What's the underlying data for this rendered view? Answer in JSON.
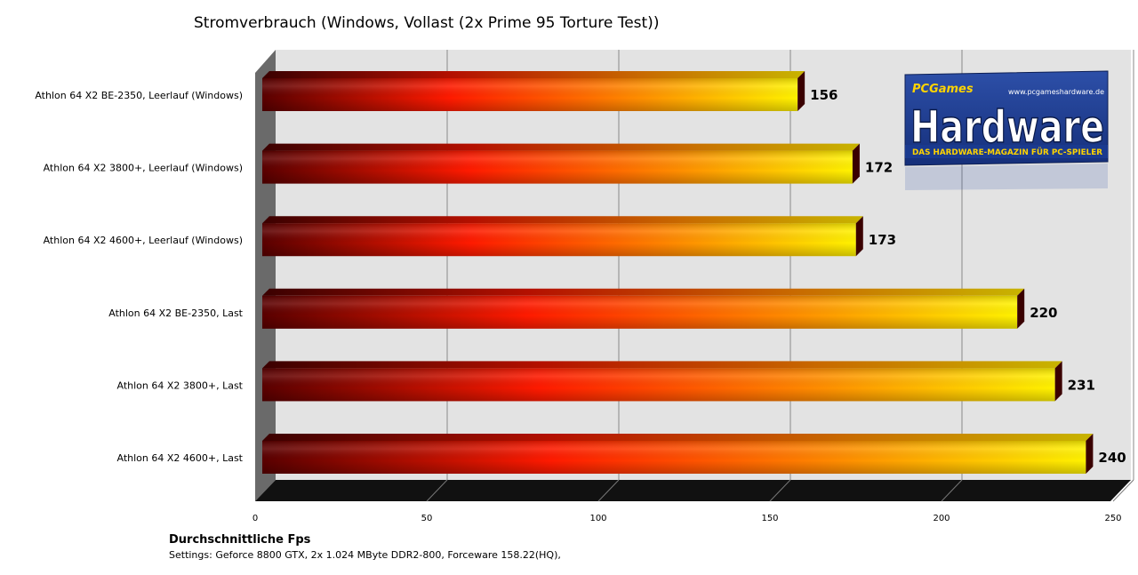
{
  "chart_data": {
    "type": "bar",
    "orientation": "horizontal",
    "title": "Stromverbrauch (Windows, Vollast (2x Prime 95 Torture Test))",
    "categories": [
      "Athlon 64 X2 BE-2350, Leerlauf (Windows)",
      "Athlon 64 X2 3800+, Leerlauf (Windows)",
      "Athlon 64 X2 4600+, Leerlauf (Windows)",
      "Athlon 64 X2 BE-2350, Last",
      "Athlon 64 X2 3800+, Last",
      "Athlon 64 X2 4600+, Last"
    ],
    "values": [
      156,
      172,
      173,
      220,
      231,
      240
    ],
    "x_ticks": [
      0,
      50,
      100,
      150,
      200,
      250
    ],
    "xlim": [
      0,
      250
    ],
    "xlabel": "Durchschnittliche  Fps",
    "subtitle": "Settings: Geforce 8800 GTX, 2x 1.024 MByte DDR2-800, Forceware 158.22(HQ),",
    "grid": true,
    "legend": "none",
    "colors": {
      "bar_start": "#5a0000",
      "bar_mid": "#ff2a00",
      "bar_end": "#fff200",
      "wall": "#e3e3e3",
      "floor": "#111111",
      "grid": "#888888"
    }
  },
  "logo": {
    "games": "PCGames",
    "url": "www.pcgameshardware.de",
    "word": "Hardware",
    "tagline": "DAS HARDWARE-MAGAZIN FÜR PC-SPIELER"
  }
}
